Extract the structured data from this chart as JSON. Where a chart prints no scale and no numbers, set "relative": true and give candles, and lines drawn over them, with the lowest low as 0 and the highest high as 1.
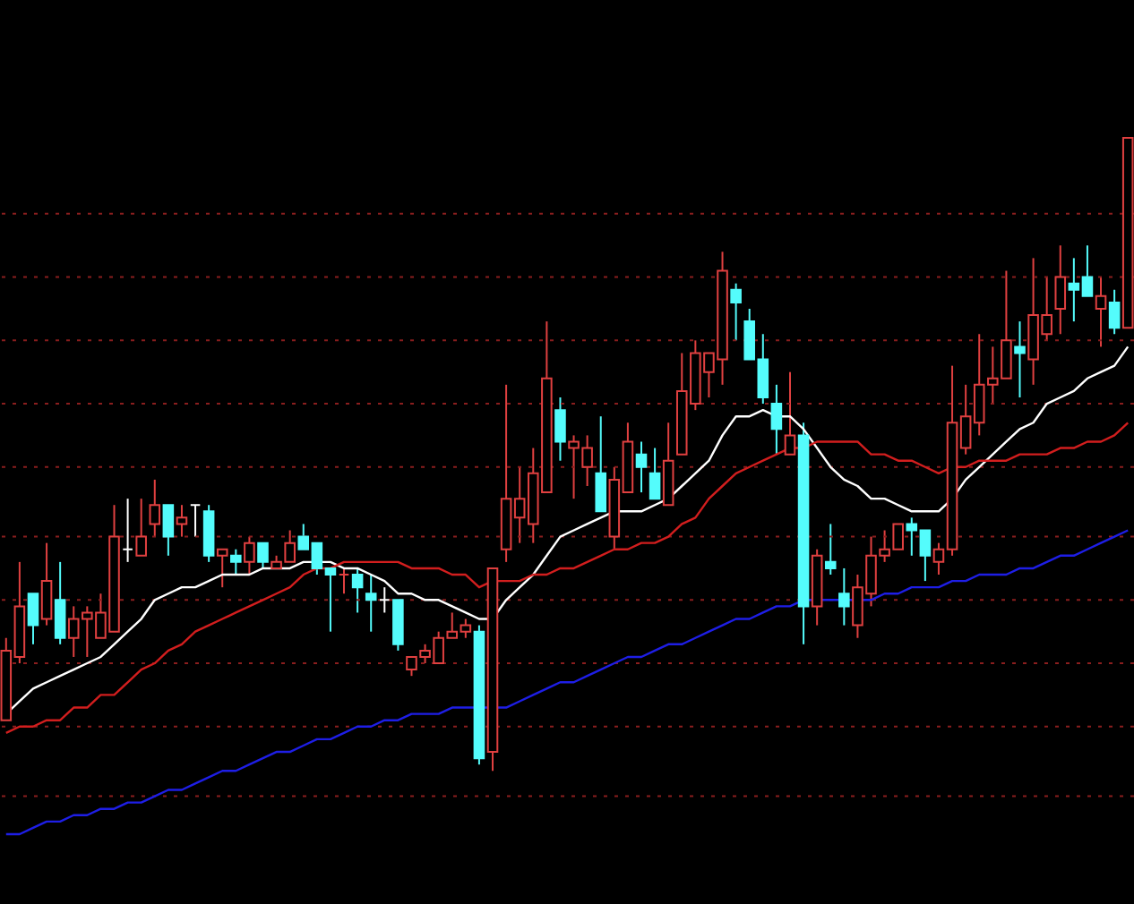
{
  "chart_data": {
    "type": "candlestick",
    "relative": true,
    "ref_lines": [
      {
        "axis": "y",
        "value": 0.88,
        "color": "#8a1e1e",
        "line_style": "dotted"
      },
      {
        "axis": "y",
        "value": 0.78,
        "color": "#8a1e1e",
        "line_style": "dotted"
      },
      {
        "axis": "y",
        "value": 0.68,
        "color": "#8a1e1e",
        "line_style": "dotted"
      },
      {
        "axis": "y",
        "value": 0.58,
        "color": "#8a1e1e",
        "line_style": "dotted"
      },
      {
        "axis": "y",
        "value": 0.48,
        "color": "#8a1e1e",
        "line_style": "dotted"
      },
      {
        "axis": "y",
        "value": 0.37,
        "color": "#8a1e1e",
        "line_style": "dotted"
      },
      {
        "axis": "y",
        "value": 0.27,
        "color": "#8a1e1e",
        "line_style": "dotted"
      },
      {
        "axis": "y",
        "value": 0.17,
        "color": "#8a1e1e",
        "line_style": "dotted"
      },
      {
        "axis": "y",
        "value": 0.07,
        "color": "#8a1e1e",
        "line_style": "dotted"
      },
      {
        "axis": "y",
        "value": -0.04,
        "color": "#8a1e1e",
        "line_style": "dotted"
      }
    ],
    "categories": [
      null,
      null,
      null,
      null,
      null,
      null,
      null,
      null,
      null,
      null,
      null,
      null,
      null,
      null,
      null,
      null,
      null,
      null,
      null,
      null,
      null,
      null,
      null,
      null,
      null,
      null,
      null,
      null,
      null,
      null,
      null,
      null,
      null,
      null,
      null,
      null,
      null,
      null,
      null,
      null,
      null,
      null,
      null,
      null,
      null,
      null,
      null,
      null,
      null,
      null,
      null,
      null,
      null,
      null,
      null,
      null,
      null,
      null,
      null,
      null,
      null,
      null,
      null,
      null,
      null,
      null,
      null,
      null,
      null,
      null,
      null,
      null,
      null,
      null,
      null,
      null,
      null,
      null,
      null,
      null,
      null,
      null,
      null,
      null
    ],
    "ohlc": [
      [
        0.08,
        0.21,
        0.08,
        0.19
      ],
      [
        0.18,
        0.33,
        0.17,
        0.26
      ],
      [
        0.28,
        0.28,
        0.2,
        0.23
      ],
      [
        0.24,
        0.36,
        0.23,
        0.3
      ],
      [
        0.27,
        0.33,
        0.2,
        0.21
      ],
      [
        0.21,
        0.26,
        0.18,
        0.24
      ],
      [
        0.24,
        0.26,
        0.18,
        0.25
      ],
      [
        0.21,
        0.28,
        0.21,
        0.25
      ],
      [
        0.22,
        0.42,
        0.22,
        0.37
      ],
      [
        0.35,
        0.43,
        0.33,
        0.35
      ],
      [
        0.34,
        0.43,
        0.34,
        0.37
      ],
      [
        0.39,
        0.46,
        0.37,
        0.42
      ],
      [
        0.42,
        0.42,
        0.34,
        0.37
      ],
      [
        0.39,
        0.42,
        0.37,
        0.4
      ],
      [
        0.42,
        0.42,
        0.37,
        0.42
      ],
      [
        0.41,
        0.42,
        0.33,
        0.34
      ],
      [
        0.34,
        0.35,
        0.29,
        0.35
      ],
      [
        0.34,
        0.35,
        0.31,
        0.33
      ],
      [
        0.33,
        0.37,
        0.31,
        0.36
      ],
      [
        0.36,
        0.36,
        0.32,
        0.33
      ],
      [
        0.32,
        0.34,
        0.32,
        0.33
      ],
      [
        0.33,
        0.38,
        0.33,
        0.36
      ],
      [
        0.37,
        0.39,
        0.35,
        0.35
      ],
      [
        0.36,
        0.36,
        0.31,
        0.32
      ],
      [
        0.32,
        0.32,
        0.22,
        0.31
      ],
      [
        0.31,
        0.32,
        0.28,
        0.31
      ],
      [
        0.31,
        0.32,
        0.25,
        0.29
      ],
      [
        0.28,
        0.31,
        0.22,
        0.27
      ],
      [
        0.27,
        0.29,
        0.25,
        0.27
      ],
      [
        0.27,
        0.27,
        0.19,
        0.2
      ],
      [
        0.16,
        0.18,
        0.15,
        0.18
      ],
      [
        0.18,
        0.2,
        0.17,
        0.19
      ],
      [
        0.17,
        0.22,
        0.17,
        0.21
      ],
      [
        0.21,
        0.25,
        0.21,
        0.22
      ],
      [
        0.22,
        0.24,
        0.21,
        0.23
      ],
      [
        0.22,
        0.23,
        0.01,
        0.02
      ],
      [
        0.03,
        0.32,
        0,
        0.32
      ],
      [
        0.35,
        0.61,
        0.33,
        0.43
      ],
      [
        0.4,
        0.48,
        0.36,
        0.43
      ],
      [
        0.39,
        0.51,
        0.36,
        0.47
      ],
      [
        0.44,
        0.71,
        0.44,
        0.62
      ],
      [
        0.57,
        0.59,
        0.49,
        0.52
      ],
      [
        0.51,
        0.53,
        0.43,
        0.52
      ],
      [
        0.48,
        0.53,
        0.45,
        0.51
      ],
      [
        0.47,
        0.56,
        0.41,
        0.41
      ],
      [
        0.37,
        0.48,
        0.35,
        0.46
      ],
      [
        0.44,
        0.55,
        0.44,
        0.52
      ],
      [
        0.5,
        0.52,
        0.44,
        0.48
      ],
      [
        0.47,
        0.51,
        0.43,
        0.43
      ],
      [
        0.42,
        0.55,
        0.42,
        0.49
      ],
      [
        0.5,
        0.66,
        0.5,
        0.6
      ],
      [
        0.58,
        0.68,
        0.57,
        0.66
      ],
      [
        0.63,
        0.66,
        0.59,
        0.66
      ],
      [
        0.65,
        0.82,
        0.61,
        0.79
      ],
      [
        0.76,
        0.77,
        0.68,
        0.74
      ],
      [
        0.71,
        0.73,
        0.65,
        0.65
      ],
      [
        0.65,
        0.69,
        0.58,
        0.59
      ],
      [
        0.58,
        0.61,
        0.5,
        0.54
      ],
      [
        0.5,
        0.63,
        0.5,
        0.53
      ],
      [
        0.53,
        0.55,
        0.2,
        0.26
      ],
      [
        0.26,
        0.35,
        0.23,
        0.34
      ],
      [
        0.33,
        0.39,
        0.31,
        0.32
      ],
      [
        0.28,
        0.32,
        0.23,
        0.26
      ],
      [
        0.23,
        0.31,
        0.21,
        0.29
      ],
      [
        0.28,
        0.37,
        0.26,
        0.34
      ],
      [
        0.34,
        0.38,
        0.33,
        0.35
      ],
      [
        0.35,
        0.39,
        0.35,
        0.39
      ],
      [
        0.39,
        0.4,
        0.34,
        0.38
      ],
      [
        0.38,
        0.38,
        0.3,
        0.34
      ],
      [
        0.33,
        0.36,
        0.31,
        0.35
      ],
      [
        0.35,
        0.64,
        0.34,
        0.55
      ],
      [
        0.51,
        0.61,
        0.5,
        0.56
      ],
      [
        0.55,
        0.69,
        0.53,
        0.61
      ],
      [
        0.61,
        0.67,
        0.58,
        0.62
      ],
      [
        0.62,
        0.79,
        0.62,
        0.68
      ],
      [
        0.67,
        0.71,
        0.59,
        0.66
      ],
      [
        0.65,
        0.81,
        0.61,
        0.72
      ],
      [
        0.69,
        0.78,
        0.68,
        0.72
      ],
      [
        0.73,
        0.83,
        0.69,
        0.78
      ],
      [
        0.77,
        0.81,
        0.71,
        0.76
      ],
      [
        0.78,
        0.83,
        0.75,
        0.75
      ],
      [
        0.73,
        0.78,
        0.67,
        0.75
      ],
      [
        0.74,
        0.76,
        0.69,
        0.7
      ],
      [
        0.7,
        1.0,
        0.7,
        1.0
      ]
    ],
    "colors": [
      "#e04040",
      "#e04040",
      "#54fcfc",
      "#e04040",
      "#54fcfc",
      "#e04040",
      "#e04040",
      "#e04040",
      "#e04040",
      "#ffffff",
      "#e04040",
      "#e04040",
      "#54fcfc",
      "#e04040",
      "#ffffff",
      "#54fcfc",
      "#e04040",
      "#54fcfc",
      "#e04040",
      "#54fcfc",
      "#e04040",
      "#e04040",
      "#54fcfc",
      "#54fcfc",
      "#54fcfc",
      "#e04040",
      "#54fcfc",
      "#54fcfc",
      "#ffffff",
      "#54fcfc",
      "#e04040",
      "#e04040",
      "#e04040",
      "#e04040",
      "#e04040",
      "#54fcfc",
      "#e04040",
      "#e04040",
      "#e04040",
      "#e04040",
      "#e04040",
      "#54fcfc",
      "#e04040",
      "#e04040",
      "#54fcfc",
      "#e04040",
      "#e04040",
      "#54fcfc",
      "#54fcfc",
      "#e04040",
      "#e04040",
      "#e04040",
      "#e04040",
      "#e04040",
      "#54fcfc",
      "#54fcfc",
      "#54fcfc",
      "#54fcfc",
      "#e04040",
      "#54fcfc",
      "#e04040",
      "#54fcfc",
      "#54fcfc",
      "#e04040",
      "#e04040",
      "#e04040",
      "#e04040",
      "#54fcfc",
      "#54fcfc",
      "#e04040",
      "#e04040",
      "#e04040",
      "#e04040",
      "#e04040",
      "#e04040",
      "#54fcfc",
      "#e04040",
      "#e04040",
      "#e04040",
      "#54fcfc",
      "#54fcfc",
      "#e04040",
      "#54fcfc",
      "#e04040"
    ],
    "series": [
      {
        "type": "line",
        "color": "#ffffff",
        "values": [
          0.09,
          0.11,
          0.13,
          0.14,
          0.15,
          0.16,
          0.17,
          0.18,
          0.2,
          0.22,
          0.24,
          0.27,
          0.28,
          0.29,
          0.29,
          0.3,
          0.31,
          0.31,
          0.31,
          0.32,
          0.32,
          0.32,
          0.33,
          0.33,
          0.33,
          0.32,
          0.32,
          0.31,
          0.3,
          0.28,
          0.28,
          0.27,
          0.27,
          0.26,
          0.25,
          0.24,
          0.24,
          0.27,
          0.29,
          0.31,
          0.34,
          0.37,
          0.38,
          0.39,
          0.4,
          0.41,
          0.41,
          0.41,
          0.42,
          0.43,
          0.45,
          0.47,
          0.49,
          0.53,
          0.56,
          0.56,
          0.57,
          0.56,
          0.56,
          0.54,
          0.51,
          0.48,
          0.46,
          0.45,
          0.43,
          0.43,
          0.42,
          0.41,
          0.41,
          0.41,
          0.43,
          0.46,
          0.48,
          0.5,
          0.52,
          0.54,
          0.55,
          0.58,
          0.59,
          0.6,
          0.62,
          0.63,
          0.64,
          0.67
        ]
      },
      {
        "type": "line",
        "color": "#d21e1e",
        "values": [
          0.06,
          0.07,
          0.07,
          0.08,
          0.08,
          0.1,
          0.1,
          0.12,
          0.12,
          0.14,
          0.16,
          0.17,
          0.19,
          0.2,
          0.22,
          0.23,
          0.24,
          0.25,
          0.26,
          0.27,
          0.28,
          0.29,
          0.31,
          0.32,
          0.32,
          0.33,
          0.33,
          0.33,
          0.33,
          0.33,
          0.32,
          0.32,
          0.32,
          0.31,
          0.31,
          0.29,
          0.3,
          0.3,
          0.3,
          0.31,
          0.31,
          0.32,
          0.32,
          0.33,
          0.34,
          0.35,
          0.35,
          0.36,
          0.36,
          0.37,
          0.39,
          0.4,
          0.43,
          0.45,
          0.47,
          0.48,
          0.49,
          0.5,
          0.51,
          0.51,
          0.52,
          0.52,
          0.52,
          0.52,
          0.5,
          0.5,
          0.49,
          0.49,
          0.48,
          0.47,
          0.48,
          0.48,
          0.49,
          0.49,
          0.49,
          0.5,
          0.5,
          0.5,
          0.51,
          0.51,
          0.52,
          0.52,
          0.53,
          0.55
        ]
      },
      {
        "type": "line",
        "color": "#1e1ee6",
        "values": [
          -0.1,
          -0.1,
          -0.09,
          -0.08,
          -0.08,
          -0.07,
          -0.07,
          -0.06,
          -0.06,
          -0.05,
          -0.05,
          -0.04,
          -0.03,
          -0.03,
          -0.02,
          -0.01,
          0.0,
          0.0,
          0.01,
          0.02,
          0.03,
          0.03,
          0.04,
          0.05,
          0.05,
          0.06,
          0.07,
          0.07,
          0.08,
          0.08,
          0.09,
          0.09,
          0.09,
          0.1,
          0.1,
          0.1,
          0.1,
          0.1,
          0.11,
          0.12,
          0.13,
          0.14,
          0.14,
          0.15,
          0.16,
          0.17,
          0.18,
          0.18,
          0.19,
          0.2,
          0.2,
          0.21,
          0.22,
          0.23,
          0.24,
          0.24,
          0.25,
          0.26,
          0.26,
          0.27,
          0.27,
          0.27,
          0.27,
          0.27,
          0.27,
          0.28,
          0.28,
          0.29,
          0.29,
          0.29,
          0.3,
          0.3,
          0.31,
          0.31,
          0.31,
          0.32,
          0.32,
          0.33,
          0.34,
          0.34,
          0.35,
          0.36,
          0.37,
          0.38
        ]
      }
    ]
  }
}
